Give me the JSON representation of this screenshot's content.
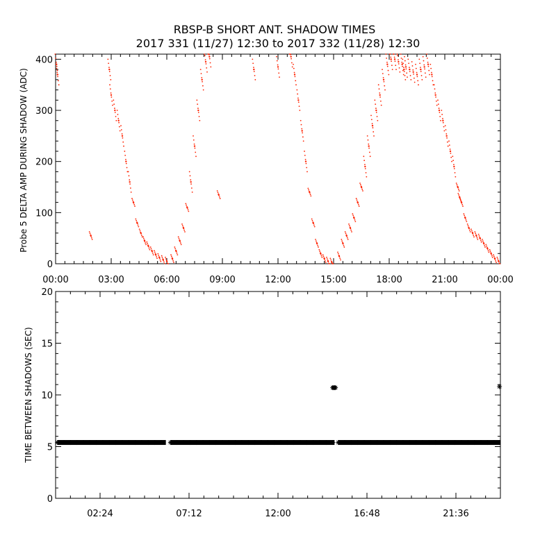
{
  "title_line1": "RBSP-B SHORT ANT. SHADOW TIMES",
  "title_line2": "2017 331 (11/27) 12:30 to 2017 332 (11/28) 12:30",
  "colors": {
    "top_series": "#ff2200",
    "bottom_series": "#000000",
    "axes": "#000000"
  },
  "chart_data": [
    {
      "type": "scatter",
      "ylabel": "Probe 5 DELTA AMP DURING SHADOW (ADC)",
      "xlabel": "",
      "xlim": [
        0,
        24
      ],
      "ylim": [
        0,
        410
      ],
      "x_tick_labels": [
        "00:00",
        "03:00",
        "06:00",
        "09:00",
        "12:00",
        "15:00",
        "18:00",
        "21:00",
        "00:00"
      ],
      "y_tick_labels": [
        "0",
        "100",
        "200",
        "300",
        "400"
      ],
      "x_unit": "hours",
      "series": [
        {
          "x": [
            0.05,
            0.1,
            2.9,
            3.0,
            3.2,
            3.4,
            3.6,
            3.8,
            4.0,
            4.2,
            4.4,
            4.6,
            4.8,
            5.0,
            5.2,
            5.4,
            5.6,
            5.8,
            6.0,
            6.3,
            6.5,
            6.7,
            6.9,
            7.1,
            7.3,
            7.5,
            7.7,
            7.9,
            8.1,
            8.3,
            12.7,
            12.9,
            13.1,
            13.3,
            13.5,
            13.7,
            13.9,
            14.1,
            14.3,
            14.5,
            14.7,
            14.9,
            15.3,
            15.5,
            15.7,
            15.9,
            16.1,
            16.3,
            16.5,
            16.7,
            16.9,
            17.1,
            17.3,
            17.5,
            17.7,
            17.9,
            18.1,
            18.3,
            18.5,
            18.7,
            18.9,
            19.1,
            19.3,
            19.5,
            19.7,
            19.9,
            20.1,
            20.3,
            20.5,
            20.7,
            20.9,
            21.1,
            21.3,
            21.5,
            21.7,
            21.9,
            22.1,
            22.3,
            22.5,
            22.7,
            22.9,
            23.1,
            23.3,
            23.5,
            23.7,
            23.9,
            1.9,
            8.8,
            10.7,
            12.0,
            18.8,
            21.8
          ],
          "y": [
            390,
            370,
            380,
            330,
            300,
            280,
            250,
            200,
            160,
            120,
            80,
            60,
            45,
            35,
            25,
            18,
            12,
            8,
            5,
            10,
            25,
            45,
            70,
            110,
            160,
            230,
            300,
            360,
            395,
            405,
            405,
            370,
            320,
            260,
            200,
            140,
            80,
            40,
            20,
            10,
            5,
            3,
            15,
            40,
            55,
            70,
            90,
            120,
            150,
            190,
            230,
            270,
            300,
            330,
            360,
            390,
            400,
            400,
            395,
            390,
            385,
            380,
            375,
            370,
            380,
            385,
            390,
            370,
            330,
            300,
            280,
            250,
            220,
            190,
            150,
            120,
            90,
            70,
            60,
            55,
            50,
            40,
            30,
            20,
            10,
            5,
            55,
            135,
            380,
            385,
            380,
            130
          ],
          "marker": "dot"
        }
      ]
    },
    {
      "type": "scatter",
      "ylabel": "TIME BETWEEN SHADOWS (SEC)",
      "xlabel": "",
      "xlim": [
        0,
        24
      ],
      "ylim": [
        0,
        20
      ],
      "x_tick_labels": [
        "02:24",
        "07:12",
        "12:00",
        "16:48",
        "21:36"
      ],
      "y_tick_labels": [
        "0",
        "5",
        "10",
        "15",
        "20"
      ],
      "x_unit": "hours",
      "series": [
        {
          "segments": [
            [
              0.1,
              5.95
            ],
            [
              6.2,
              15.05
            ],
            [
              15.25,
              24.0
            ]
          ],
          "y": 5.4,
          "marker": "star"
        },
        {
          "x": [
            14.95,
            15.0,
            15.05,
            15.1,
            23.95
          ],
          "y": [
            10.7,
            10.7,
            10.7,
            10.7,
            10.8
          ],
          "marker": "star"
        }
      ]
    }
  ]
}
